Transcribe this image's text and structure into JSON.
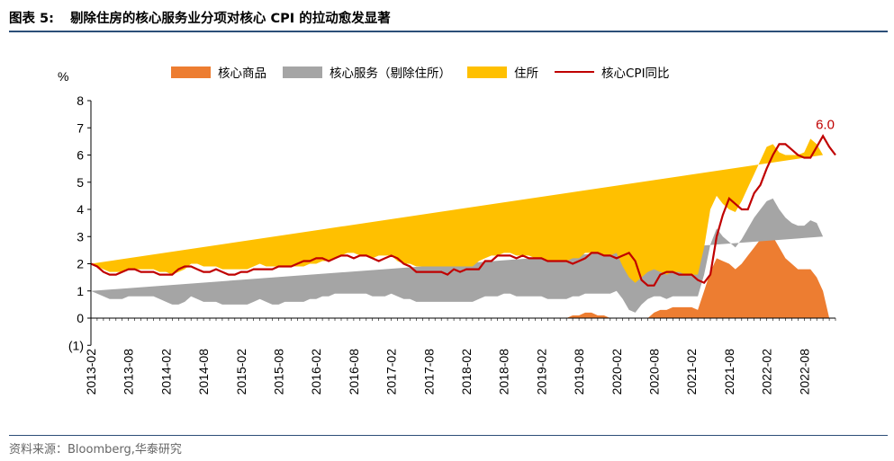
{
  "figure": {
    "label": "图表 5:",
    "title": "剔除住房的核心服务业分项对核心 CPI 的拉动愈发显著",
    "source": "资料来源：Bloomberg,华泰研究"
  },
  "chart_data": {
    "type": "area",
    "stacked": true,
    "y_unit": "%",
    "ylim": [
      -1,
      8
    ],
    "yticks": [
      -1,
      0,
      1,
      2,
      3,
      4,
      5,
      6,
      7,
      8
    ],
    "ytick_labels": [
      "(1)",
      "0",
      "1",
      "2",
      "3",
      "4",
      "5",
      "6",
      "7",
      "8"
    ],
    "x_start": "2013-02",
    "x_end": "2022-11",
    "x_tick_labels": [
      "2013-02",
      "2013-08",
      "2014-02",
      "2014-08",
      "2015-02",
      "2015-08",
      "2016-02",
      "2016-08",
      "2017-02",
      "2017-08",
      "2018-02",
      "2018-08",
      "2019-02",
      "2019-08",
      "2020-02",
      "2020-08",
      "2021-02",
      "2021-08",
      "2022-02",
      "2022-08"
    ],
    "annotation": "6.0",
    "colors": {
      "goods": "#ed7d31",
      "services": "#a5a5a5",
      "shelter": "#ffc000",
      "cpi": "#c00000"
    },
    "series": [
      {
        "name": "核心商品",
        "key": "goods",
        "values": [
          0.0,
          0.0,
          0.0,
          0.0,
          0.0,
          0.0,
          0.0,
          0.0,
          0.0,
          0.0,
          0.0,
          0.0,
          -0.1,
          -0.1,
          -0.1,
          -0.1,
          -0.1,
          -0.1,
          -0.1,
          -0.1,
          -0.1,
          -0.1,
          -0.1,
          -0.1,
          -0.1,
          -0.1,
          -0.2,
          -0.2,
          -0.1,
          -0.1,
          -0.1,
          -0.1,
          -0.1,
          -0.1,
          -0.1,
          -0.1,
          -0.1,
          -0.1,
          -0.1,
          -0.1,
          -0.1,
          -0.1,
          -0.1,
          -0.1,
          -0.1,
          -0.1,
          -0.1,
          -0.1,
          -0.1,
          -0.1,
          -0.1,
          -0.1,
          -0.2,
          -0.2,
          -0.2,
          -0.2,
          -0.3,
          -0.2,
          -0.2,
          -0.2,
          -0.1,
          -0.1,
          0.0,
          0.0,
          0.0,
          0.0,
          0.0,
          0.0,
          0.0,
          0.0,
          0.0,
          0.0,
          0.0,
          0.0,
          0.0,
          0.0,
          0.0,
          0.1,
          0.1,
          0.2,
          0.2,
          0.1,
          0.1,
          0.0,
          -0.1,
          -0.1,
          -0.2,
          -0.2,
          -0.1,
          0.0,
          0.2,
          0.3,
          0.3,
          0.4,
          0.4,
          0.4,
          0.4,
          0.3,
          1.0,
          1.7,
          2.2,
          2.1,
          2.0,
          1.8,
          2.0,
          2.3,
          2.6,
          2.9,
          3.1,
          3.0,
          2.6,
          2.2,
          2.0,
          1.8,
          1.8,
          1.8,
          1.5,
          1.0
        ],
        "comment_goods_scale": "x positions are months from 2013-02"
      },
      {
        "name": "核心服务（剔除住所）",
        "key": "services",
        "values": [
          1.0,
          0.9,
          0.8,
          0.7,
          0.7,
          0.7,
          0.8,
          0.8,
          0.8,
          0.8,
          0.8,
          0.7,
          0.6,
          0.5,
          0.5,
          0.6,
          0.8,
          0.7,
          0.6,
          0.6,
          0.6,
          0.5,
          0.5,
          0.5,
          0.5,
          0.5,
          0.6,
          0.7,
          0.6,
          0.5,
          0.5,
          0.6,
          0.6,
          0.6,
          0.6,
          0.7,
          0.7,
          0.8,
          0.8,
          0.9,
          0.9,
          0.9,
          0.9,
          0.9,
          0.9,
          0.8,
          0.8,
          0.8,
          0.9,
          0.8,
          0.7,
          0.7,
          0.6,
          0.6,
          0.6,
          0.6,
          0.6,
          0.6,
          0.6,
          0.6,
          0.6,
          0.6,
          0.7,
          0.8,
          0.8,
          0.8,
          0.9,
          0.9,
          0.8,
          0.8,
          0.8,
          0.8,
          0.8,
          0.7,
          0.7,
          0.7,
          0.7,
          0.7,
          0.7,
          0.7,
          0.7,
          0.8,
          0.8,
          0.9,
          1.0,
          0.7,
          0.3,
          0.2,
          0.5,
          0.7,
          0.6,
          0.5,
          0.4,
          0.4,
          0.4,
          0.4,
          0.4,
          0.5,
          0.6,
          1.0,
          1.1,
          0.9,
          0.8,
          0.8,
          0.9,
          1.0,
          1.1,
          1.1,
          1.2,
          1.4,
          1.4,
          1.5,
          1.5,
          1.6,
          1.6,
          1.8,
          2.0,
          2.0
        ]
      },
      {
        "name": "住所",
        "key": "shelter",
        "values": [
          1.0,
          1.0,
          1.0,
          1.0,
          1.0,
          1.0,
          1.0,
          1.0,
          1.0,
          1.0,
          1.0,
          1.0,
          1.1,
          1.1,
          1.2,
          1.2,
          1.2,
          1.3,
          1.3,
          1.3,
          1.3,
          1.3,
          1.3,
          1.3,
          1.3,
          1.3,
          1.3,
          1.3,
          1.3,
          1.4,
          1.4,
          1.3,
          1.3,
          1.3,
          1.3,
          1.3,
          1.3,
          1.3,
          1.3,
          1.3,
          1.4,
          1.5,
          1.5,
          1.4,
          1.4,
          1.4,
          1.5,
          1.5,
          1.4,
          1.3,
          1.3,
          1.3,
          1.3,
          1.3,
          1.3,
          1.3,
          1.3,
          1.3,
          1.3,
          1.3,
          1.3,
          1.3,
          1.4,
          1.4,
          1.5,
          1.5,
          1.5,
          1.5,
          1.5,
          1.5,
          1.5,
          1.4,
          1.4,
          1.4,
          1.4,
          1.4,
          1.4,
          1.4,
          1.4,
          1.5,
          1.5,
          1.5,
          1.4,
          1.4,
          1.4,
          1.2,
          1.2,
          1.1,
          1.0,
          1.0,
          1.0,
          0.9,
          0.9,
          0.9,
          0.9,
          0.8,
          0.8,
          0.8,
          1.0,
          1.3,
          1.2,
          1.2,
          1.2,
          1.3,
          1.4,
          1.5,
          1.6,
          1.8,
          2.0,
          2.0,
          2.1,
          2.3,
          2.5,
          2.6,
          2.7,
          3.0,
          2.9,
          3.0
        ]
      },
      {
        "name": "核心CPI同比",
        "key": "cpi",
        "type": "line",
        "values": [
          2.0,
          1.9,
          1.7,
          1.6,
          1.6,
          1.7,
          1.8,
          1.8,
          1.7,
          1.7,
          1.7,
          1.6,
          1.6,
          1.6,
          1.8,
          1.9,
          1.9,
          1.8,
          1.7,
          1.7,
          1.8,
          1.7,
          1.6,
          1.6,
          1.7,
          1.7,
          1.8,
          1.8,
          1.8,
          1.8,
          1.9,
          1.9,
          1.9,
          2.0,
          2.1,
          2.1,
          2.2,
          2.2,
          2.1,
          2.2,
          2.3,
          2.3,
          2.2,
          2.3,
          2.3,
          2.2,
          2.1,
          2.2,
          2.3,
          2.2,
          2.0,
          1.9,
          1.7,
          1.7,
          1.7,
          1.7,
          1.7,
          1.6,
          1.8,
          1.7,
          1.8,
          1.8,
          1.8,
          2.1,
          2.1,
          2.3,
          2.3,
          2.3,
          2.2,
          2.3,
          2.2,
          2.2,
          2.2,
          2.1,
          2.1,
          2.1,
          2.1,
          2.0,
          2.1,
          2.2,
          2.4,
          2.4,
          2.3,
          2.3,
          2.2,
          2.3,
          2.4,
          2.1,
          1.4,
          1.2,
          1.2,
          1.6,
          1.7,
          1.7,
          1.6,
          1.6,
          1.6,
          1.4,
          1.3,
          1.6,
          3.0,
          3.8,
          4.4,
          4.2,
          4.0,
          4.0,
          4.6,
          4.9,
          5.5,
          6.0,
          6.4,
          6.4,
          6.2,
          6.0,
          5.9,
          5.9,
          6.3,
          6.7,
          6.3,
          6.0
        ]
      }
    ]
  }
}
